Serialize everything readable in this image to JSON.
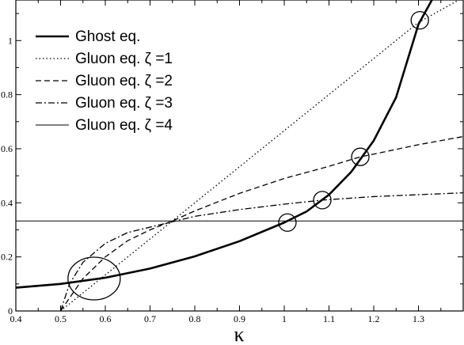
{
  "chart_data": {
    "type": "line",
    "title": "",
    "xlabel": "κ",
    "ylabel": "",
    "xlim": [
      0.4,
      1.4
    ],
    "ylim": [
      0,
      1.15
    ],
    "grid": false,
    "legend_position": "top-left",
    "x_ticks": [
      "0.4",
      "0.5",
      "0.6",
      "0.7",
      "0.8",
      "0.9",
      "1",
      "1.1",
      "1.2",
      "1.3"
    ],
    "y_ticks": [
      "0",
      "0.2",
      "0.4",
      "0.6",
      "0.8",
      "1"
    ],
    "series": [
      {
        "name": "Ghost eq.",
        "style": "solid-thick",
        "points": [
          [
            0.4,
            0.086
          ],
          [
            0.5,
            0.1
          ],
          [
            0.6,
            0.123
          ],
          [
            0.7,
            0.157
          ],
          [
            0.8,
            0.202
          ],
          [
            0.9,
            0.258
          ],
          [
            1.0,
            0.327
          ],
          [
            1.05,
            0.368
          ],
          [
            1.1,
            0.43
          ],
          [
            1.15,
            0.515
          ],
          [
            1.2,
            0.63
          ],
          [
            1.25,
            0.79
          ],
          [
            1.3,
            1.06
          ],
          [
            1.33,
            1.15
          ]
        ]
      },
      {
        "name": "Gluon eq. ζ =1",
        "style": "dotted",
        "points": [
          [
            0.5,
            0.0
          ],
          [
            0.75,
            0.333
          ],
          [
            1.0,
            0.667
          ],
          [
            1.3,
            1.067
          ],
          [
            1.39,
            1.15
          ]
        ]
      },
      {
        "name": "Gluon eq. ζ =2",
        "style": "dashed",
        "points": [
          [
            0.5,
            0.0
          ],
          [
            0.55,
            0.12
          ],
          [
            0.6,
            0.2
          ],
          [
            0.65,
            0.26
          ],
          [
            0.7,
            0.3
          ],
          [
            0.75,
            0.333
          ],
          [
            0.8,
            0.37
          ],
          [
            0.9,
            0.435
          ],
          [
            1.0,
            0.49
          ],
          [
            1.1,
            0.535
          ],
          [
            1.17,
            0.57
          ],
          [
            1.2,
            0.58
          ],
          [
            1.3,
            0.615
          ],
          [
            1.4,
            0.645
          ]
        ]
      },
      {
        "name": "Gluon eq. ζ =3",
        "style": "dashdot",
        "points": [
          [
            0.5,
            0.0
          ],
          [
            0.52,
            0.1
          ],
          [
            0.55,
            0.18
          ],
          [
            0.6,
            0.25
          ],
          [
            0.65,
            0.29
          ],
          [
            0.7,
            0.31
          ],
          [
            0.75,
            0.33
          ],
          [
            0.8,
            0.35
          ],
          [
            0.9,
            0.375
          ],
          [
            1.0,
            0.395
          ],
          [
            1.085,
            0.41
          ],
          [
            1.2,
            0.423
          ],
          [
            1.3,
            0.43
          ],
          [
            1.4,
            0.437
          ]
        ]
      },
      {
        "name": "Gluon eq. ζ =4",
        "style": "solid-thin",
        "points": [
          [
            0.4,
            0.333
          ],
          [
            1.4,
            0.333
          ]
        ]
      }
    ],
    "markers": [
      {
        "type": "circle",
        "x": 1.007,
        "y": 0.327
      },
      {
        "type": "circle",
        "x": 1.085,
        "y": 0.41
      },
      {
        "type": "circle",
        "x": 1.17,
        "y": 0.57
      },
      {
        "type": "circle",
        "x": 1.303,
        "y": 1.075
      },
      {
        "type": "ellipse",
        "x": 0.575,
        "y": 0.12
      }
    ]
  }
}
